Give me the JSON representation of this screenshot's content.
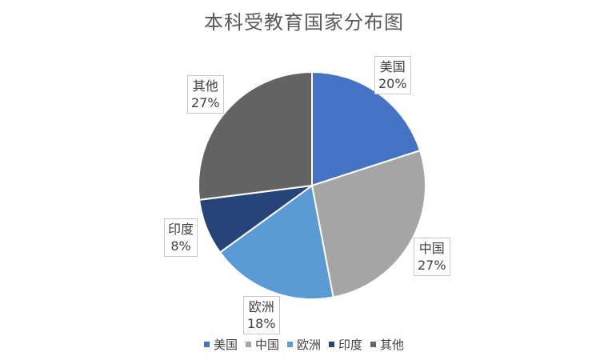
{
  "chart_data": {
    "type": "pie",
    "title": "本科受教育国家分布图",
    "categories": [
      "美国",
      "中国",
      "欧洲",
      "印度",
      "其他"
    ],
    "values": [
      20,
      27,
      18,
      8,
      27
    ],
    "value_labels": [
      "20%",
      "27%",
      "18%",
      "8%",
      "27%"
    ],
    "colors": [
      "#4472c4",
      "#a5a5a5",
      "#5b9bd5",
      "#264478",
      "#636363"
    ],
    "start_angle_deg": 0,
    "direction": "clockwise",
    "legend_position": "bottom",
    "data_labels": "outside-with-callout-box"
  }
}
